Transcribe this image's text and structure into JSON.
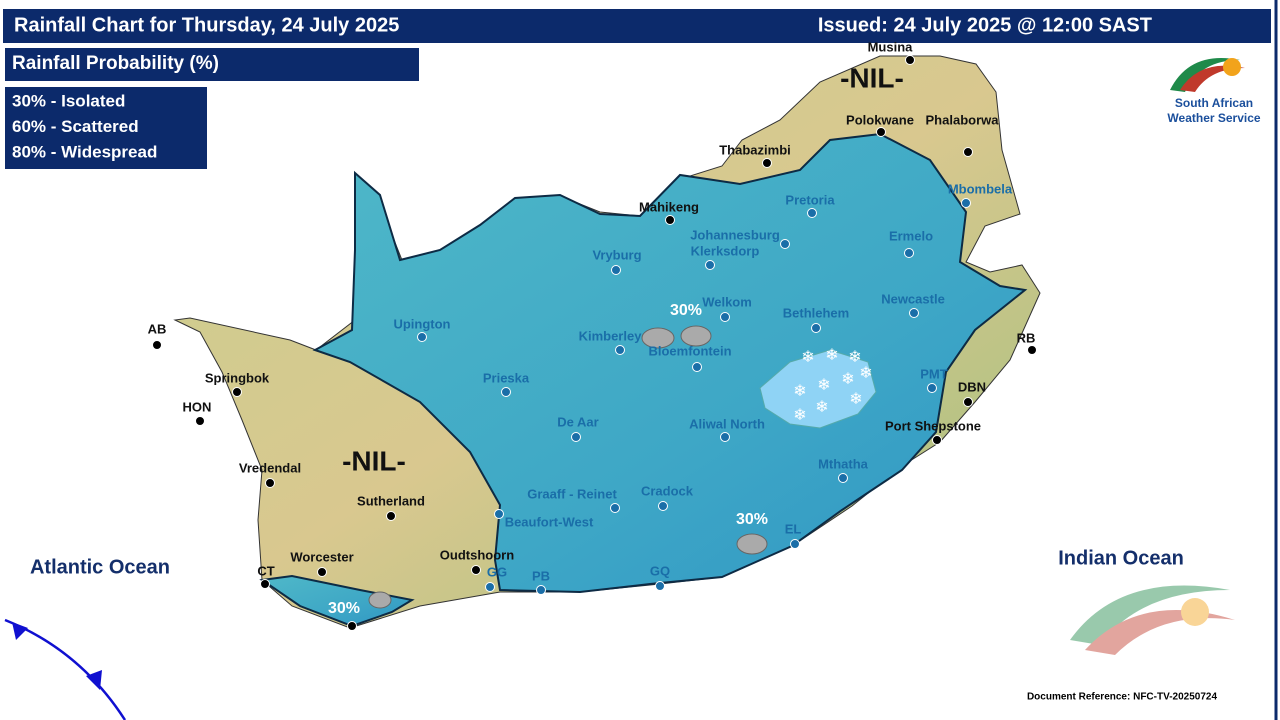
{
  "header": {
    "title": "Rainfall Chart for Thursday, 24 July 2025",
    "issued": "Issued: 24 July 2025 @ 12:00 SAST"
  },
  "legend": {
    "title": "Rainfall Probability (%)",
    "items": [
      "30% - Isolated",
      "60% - Scattered",
      "80% - Widespread"
    ]
  },
  "logo": {
    "line1": "South African",
    "line2": "Weather Service"
  },
  "map": {
    "nil_labels": [
      "-NIL-",
      "-NIL-"
    ],
    "probability_labels": [
      "30%",
      "30%",
      "30%"
    ],
    "oceans": [
      "Atlantic Ocean",
      "Indian Ocean"
    ],
    "towns": [
      "Musina",
      "Polokwane",
      "Phalaborwa",
      "Thabazimbi",
      "Mbombela",
      "Mahikeng",
      "Pretoria",
      "Johannesburg",
      "Ermelo",
      "Klerksdorp",
      "Vryburg",
      "Newcastle",
      "RB",
      "Welkom",
      "Bethlehem",
      "Upington",
      "Kimberley",
      "Bloemfontein",
      "AB",
      "PMT",
      "DBN",
      "Springbok",
      "Prieska",
      "HON",
      "De Aar",
      "Aliwal North",
      "Port Shepstone",
      "Vredendal",
      "Mthatha",
      "Sutherland",
      "Graaff - Reinet",
      "Cradock",
      "Beaufort-West",
      "EL",
      "Worcester",
      "Oudtshoorn",
      "CT",
      "GG",
      "PB",
      "GQ"
    ]
  },
  "footer": {
    "reference": "Document Reference: NFC-TV-20250724"
  }
}
